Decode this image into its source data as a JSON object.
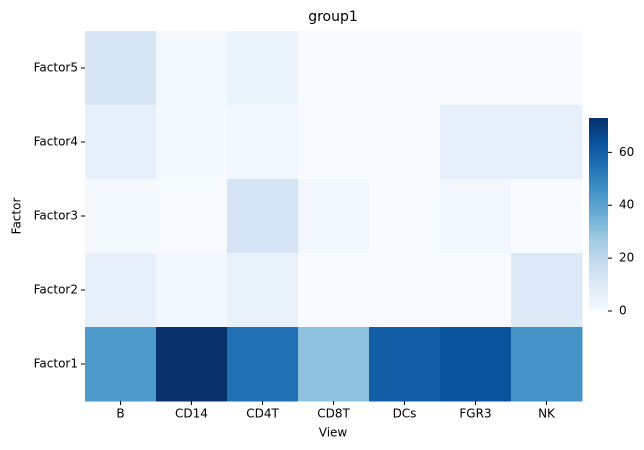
{
  "chart_data": {
    "type": "heatmap",
    "title": "group1",
    "x_label": "View",
    "y_label": "Factor",
    "x_categories": [
      "B",
      "CD14",
      "CD4T",
      "CD8T",
      "DCs",
      "FGR3",
      "NK"
    ],
    "y_categories": [
      "Factor5",
      "Factor4",
      "Factor3",
      "Factor2",
      "Factor1"
    ],
    "values": [
      [
        12,
        1,
        4,
        0,
        0,
        0,
        0
      ],
      [
        6,
        1,
        2,
        0,
        0,
        6,
        6
      ],
      [
        1,
        0,
        13,
        2,
        0,
        2,
        0
      ],
      [
        6,
        2,
        5,
        0,
        0,
        0,
        10
      ],
      [
        43,
        73,
        55,
        30,
        60,
        63,
        45
      ]
    ],
    "colormap": "Blues",
    "zlim": [
      0,
      73
    ],
    "zticks": [
      0,
      20,
      40,
      60
    ]
  }
}
